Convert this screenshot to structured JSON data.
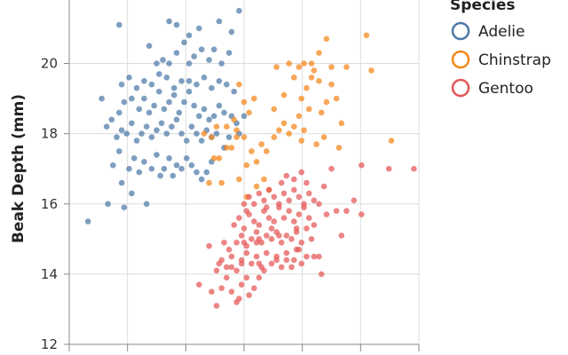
{
  "chart_data": {
    "type": "scatter",
    "title": "",
    "xlabel": "",
    "ylabel": "Beak Depth (mm)",
    "ylim": [
      12,
      22
    ],
    "yticks": [
      12,
      14,
      16,
      18,
      20
    ],
    "xlim": [
      32,
      60
    ],
    "grid": true,
    "legend": {
      "title": "Species",
      "placement": "right"
    },
    "series": [
      {
        "name": "Adelie",
        "color": "#4c78a8",
        "points": [
          [
            33.5,
            15.5
          ],
          [
            35.1,
            16.0
          ],
          [
            36.2,
            16.6
          ],
          [
            37.0,
            16.3
          ],
          [
            36.4,
            15.9
          ],
          [
            38.2,
            16.0
          ],
          [
            35.5,
            17.1
          ],
          [
            36.0,
            17.5
          ],
          [
            36.8,
            17.0
          ],
          [
            37.2,
            17.3
          ],
          [
            37.6,
            16.9
          ],
          [
            38.0,
            17.2
          ],
          [
            38.6,
            17.0
          ],
          [
            39.0,
            17.4
          ],
          [
            39.3,
            16.8
          ],
          [
            39.6,
            17.0
          ],
          [
            40.0,
            17.3
          ],
          [
            40.3,
            16.8
          ],
          [
            40.6,
            17.1
          ],
          [
            41.0,
            17.0
          ],
          [
            41.4,
            17.3
          ],
          [
            41.8,
            17.1
          ],
          [
            42.2,
            16.9
          ],
          [
            42.6,
            16.7
          ],
          [
            43.0,
            16.9
          ],
          [
            43.4,
            17.2
          ],
          [
            35.8,
            17.9
          ],
          [
            36.2,
            18.1
          ],
          [
            36.6,
            18.0
          ],
          [
            37.0,
            18.3
          ],
          [
            37.4,
            17.8
          ],
          [
            37.8,
            18.0
          ],
          [
            38.2,
            18.2
          ],
          [
            38.6,
            17.9
          ],
          [
            39.0,
            18.1
          ],
          [
            39.4,
            18.3
          ],
          [
            39.8,
            18.0
          ],
          [
            40.2,
            18.2
          ],
          [
            40.6,
            18.4
          ],
          [
            41.0,
            18.0
          ],
          [
            41.4,
            17.8
          ],
          [
            41.8,
            18.2
          ],
          [
            42.2,
            18.0
          ],
          [
            42.6,
            17.8
          ],
          [
            43.0,
            18.1
          ],
          [
            43.4,
            17.9
          ],
          [
            43.8,
            18.0
          ],
          [
            44.4,
            17.6
          ],
          [
            44.8,
            17.9
          ],
          [
            45.6,
            18.0
          ],
          [
            36.0,
            18.6
          ],
          [
            36.4,
            18.9
          ],
          [
            37.0,
            19.0
          ],
          [
            37.6,
            18.7
          ],
          [
            38.0,
            19.0
          ],
          [
            38.4,
            18.6
          ],
          [
            38.8,
            18.8
          ],
          [
            39.2,
            19.2
          ],
          [
            39.6,
            18.7
          ],
          [
            40.0,
            18.9
          ],
          [
            40.4,
            19.1
          ],
          [
            40.8,
            18.6
          ],
          [
            41.2,
            18.9
          ],
          [
            41.6,
            19.2
          ],
          [
            42.0,
            18.8
          ],
          [
            42.4,
            18.5
          ],
          [
            42.8,
            18.7
          ],
          [
            43.2,
            18.4
          ],
          [
            43.6,
            18.5
          ],
          [
            44.0,
            18.8
          ],
          [
            44.4,
            18.6
          ],
          [
            45.0,
            18.5
          ],
          [
            45.4,
            18.3
          ],
          [
            46.0,
            18.5
          ],
          [
            36.2,
            19.4
          ],
          [
            36.8,
            19.6
          ],
          [
            37.4,
            19.3
          ],
          [
            38.0,
            19.5
          ],
          [
            38.6,
            19.4
          ],
          [
            39.2,
            19.7
          ],
          [
            39.8,
            19.6
          ],
          [
            40.4,
            19.3
          ],
          [
            41.0,
            19.5
          ],
          [
            41.6,
            19.5
          ],
          [
            42.2,
            19.4
          ],
          [
            42.8,
            19.6
          ],
          [
            43.4,
            19.3
          ],
          [
            44.0,
            19.5
          ],
          [
            44.6,
            19.4
          ],
          [
            45.2,
            19.2
          ],
          [
            39.0,
            20.0
          ],
          [
            39.5,
            20.1
          ],
          [
            40.0,
            20.0
          ],
          [
            40.6,
            20.3
          ],
          [
            41.6,
            20.0
          ],
          [
            42.0,
            20.2
          ],
          [
            42.6,
            20.4
          ],
          [
            43.2,
            20.1
          ],
          [
            43.6,
            20.4
          ],
          [
            44.2,
            20.0
          ],
          [
            44.8,
            20.3
          ],
          [
            38.4,
            20.5
          ],
          [
            41.2,
            20.6
          ],
          [
            41.6,
            20.8
          ],
          [
            40.0,
            21.2
          ],
          [
            40.6,
            21.1
          ],
          [
            42.4,
            21.0
          ],
          [
            44.0,
            21.2
          ],
          [
            36.0,
            21.1
          ],
          [
            45.6,
            21.5
          ],
          [
            45.0,
            20.9
          ],
          [
            34.6,
            19.0
          ],
          [
            35.0,
            18.2
          ],
          [
            35.4,
            18.4
          ]
        ]
      },
      {
        "name": "Chinstrap",
        "color": "#f58518",
        "points": [
          [
            43.6,
            17.3
          ],
          [
            44.0,
            17.3
          ],
          [
            44.6,
            17.6
          ],
          [
            45.0,
            17.6
          ],
          [
            45.4,
            17.9
          ],
          [
            46.0,
            17.9
          ],
          [
            46.2,
            17.1
          ],
          [
            46.6,
            17.5
          ],
          [
            47.0,
            17.2
          ],
          [
            47.4,
            17.7
          ],
          [
            47.8,
            17.5
          ],
          [
            48.4,
            17.9
          ],
          [
            48.8,
            18.1
          ],
          [
            49.2,
            18.3
          ],
          [
            49.6,
            18.0
          ],
          [
            50.0,
            18.2
          ],
          [
            50.4,
            18.5
          ],
          [
            50.8,
            18.1
          ],
          [
            51.2,
            18.7
          ],
          [
            50.6,
            19.0
          ],
          [
            51.0,
            19.3
          ],
          [
            51.4,
            19.6
          ],
          [
            51.6,
            19.8
          ],
          [
            52.0,
            19.5
          ],
          [
            52.2,
            18.6
          ],
          [
            52.6,
            18.9
          ],
          [
            53.0,
            19.4
          ],
          [
            53.4,
            19.0
          ],
          [
            50.0,
            19.6
          ],
          [
            50.4,
            19.9
          ],
          [
            50.8,
            20.0
          ],
          [
            51.4,
            20.0
          ],
          [
            52.0,
            20.3
          ],
          [
            52.6,
            20.7
          ],
          [
            53.0,
            19.9
          ],
          [
            54.2,
            19.9
          ],
          [
            55.8,
            20.8
          ],
          [
            56.2,
            19.8
          ],
          [
            45.6,
            19.4
          ],
          [
            46.0,
            18.9
          ],
          [
            46.4,
            18.6
          ],
          [
            46.8,
            19.0
          ],
          [
            45.2,
            18.4
          ],
          [
            44.6,
            18.2
          ],
          [
            47.6,
            16.7
          ],
          [
            48.0,
            16.4
          ],
          [
            47.0,
            16.5
          ],
          [
            46.2,
            16.2
          ],
          [
            45.6,
            16.7
          ],
          [
            44.2,
            16.6
          ],
          [
            43.2,
            16.6
          ],
          [
            43.4,
            17.9
          ],
          [
            42.8,
            18.0
          ],
          [
            43.8,
            18.2
          ],
          [
            48.4,
            18.7
          ],
          [
            49.2,
            19.1
          ],
          [
            50.6,
            17.8
          ],
          [
            51.8,
            17.7
          ],
          [
            52.4,
            17.9
          ],
          [
            53.6,
            17.6
          ],
          [
            57.8,
            17.8
          ],
          [
            53.8,
            18.3
          ],
          [
            49.6,
            20.0
          ],
          [
            48.6,
            19.9
          ],
          [
            45.4,
            18.1
          ]
        ]
      },
      {
        "name": "Gentoo",
        "color": "#e45756",
        "points": [
          [
            42.4,
            13.7
          ],
          [
            43.4,
            13.5
          ],
          [
            43.8,
            13.1
          ],
          [
            44.2,
            13.6
          ],
          [
            44.6,
            13.9
          ],
          [
            45.0,
            13.5
          ],
          [
            45.4,
            13.2
          ],
          [
            45.8,
            13.7
          ],
          [
            46.2,
            13.9
          ],
          [
            43.8,
            14.1
          ],
          [
            44.2,
            14.4
          ],
          [
            44.6,
            14.2
          ],
          [
            45.0,
            14.5
          ],
          [
            45.4,
            14.1
          ],
          [
            45.8,
            14.4
          ],
          [
            46.2,
            14.6
          ],
          [
            46.6,
            14.3
          ],
          [
            47.0,
            14.5
          ],
          [
            47.4,
            14.2
          ],
          [
            47.8,
            14.6
          ],
          [
            48.2,
            14.3
          ],
          [
            48.6,
            14.5
          ],
          [
            49.0,
            14.2
          ],
          [
            49.4,
            14.6
          ],
          [
            50.0,
            14.4
          ],
          [
            50.4,
            14.7
          ],
          [
            51.0,
            14.5
          ],
          [
            43.2,
            14.8
          ],
          [
            44.8,
            14.7
          ],
          [
            45.4,
            14.9
          ],
          [
            45.8,
            15.1
          ],
          [
            46.2,
            14.8
          ],
          [
            46.6,
            15.0
          ],
          [
            47.0,
            15.2
          ],
          [
            47.4,
            14.9
          ],
          [
            47.8,
            15.1
          ],
          [
            48.2,
            15.0
          ],
          [
            48.6,
            15.2
          ],
          [
            49.0,
            14.9
          ],
          [
            49.4,
            15.1
          ],
          [
            49.8,
            15.0
          ],
          [
            50.2,
            15.2
          ],
          [
            50.6,
            14.9
          ],
          [
            51.0,
            15.3
          ],
          [
            45.2,
            15.4
          ],
          [
            45.6,
            15.6
          ],
          [
            46.0,
            15.3
          ],
          [
            46.4,
            15.7
          ],
          [
            46.8,
            15.5
          ],
          [
            47.2,
            15.4
          ],
          [
            47.6,
            15.8
          ],
          [
            48.0,
            15.6
          ],
          [
            48.4,
            15.5
          ],
          [
            48.8,
            15.9
          ],
          [
            49.2,
            15.6
          ],
          [
            49.6,
            15.8
          ],
          [
            50.0,
            15.5
          ],
          [
            50.4,
            15.7
          ],
          [
            50.8,
            15.9
          ],
          [
            51.2,
            15.6
          ],
          [
            46.0,
            16.0
          ],
          [
            46.4,
            16.2
          ],
          [
            46.8,
            16.0
          ],
          [
            47.2,
            16.3
          ],
          [
            47.6,
            16.1
          ],
          [
            48.0,
            16.4
          ],
          [
            48.4,
            16.2
          ],
          [
            48.8,
            16.0
          ],
          [
            49.2,
            16.3
          ],
          [
            49.6,
            16.1
          ],
          [
            50.0,
            16.4
          ],
          [
            50.4,
            16.2
          ],
          [
            50.8,
            16.0
          ],
          [
            51.2,
            16.3
          ],
          [
            51.6,
            16.1
          ],
          [
            49.0,
            16.6
          ],
          [
            49.4,
            16.8
          ],
          [
            50.0,
            16.7
          ],
          [
            50.6,
            16.9
          ],
          [
            51.0,
            16.6
          ],
          [
            52.0,
            16.0
          ],
          [
            52.6,
            15.7
          ],
          [
            53.4,
            15.8
          ],
          [
            54.2,
            15.8
          ],
          [
            54.8,
            16.1
          ],
          [
            55.4,
            15.7
          ],
          [
            50.2,
            15.3
          ],
          [
            51.6,
            15.4
          ],
          [
            52.4,
            16.5
          ],
          [
            53.0,
            17.0
          ],
          [
            55.4,
            17.1
          ],
          [
            57.6,
            17.0
          ],
          [
            59.6,
            17.0
          ],
          [
            47.8,
            15.9
          ],
          [
            48.2,
            15.3
          ],
          [
            44.0,
            14.3
          ],
          [
            46.0,
            14.9
          ],
          [
            47.0,
            14.9
          ],
          [
            49.4,
            14.4
          ],
          [
            50.6,
            14.3
          ],
          [
            52.0,
            14.5
          ],
          [
            45.6,
            13.3
          ],
          [
            46.4,
            13.4
          ],
          [
            47.2,
            13.9
          ],
          [
            47.6,
            14.1
          ],
          [
            48.6,
            14.4
          ],
          [
            49.8,
            14.2
          ],
          [
            51.6,
            14.5
          ],
          [
            45.0,
            14.2
          ],
          [
            46.2,
            15.8
          ],
          [
            47.2,
            15.0
          ],
          [
            46.8,
            13.6
          ],
          [
            48.8,
            15.1
          ],
          [
            50.2,
            14.7
          ],
          [
            44.4,
            14.9
          ],
          [
            45.8,
            14.3
          ],
          [
            52.2,
            14.0
          ],
          [
            47.2,
            14.3
          ],
          [
            51.4,
            15.0
          ],
          [
            53.8,
            15.1
          ]
        ]
      }
    ]
  }
}
